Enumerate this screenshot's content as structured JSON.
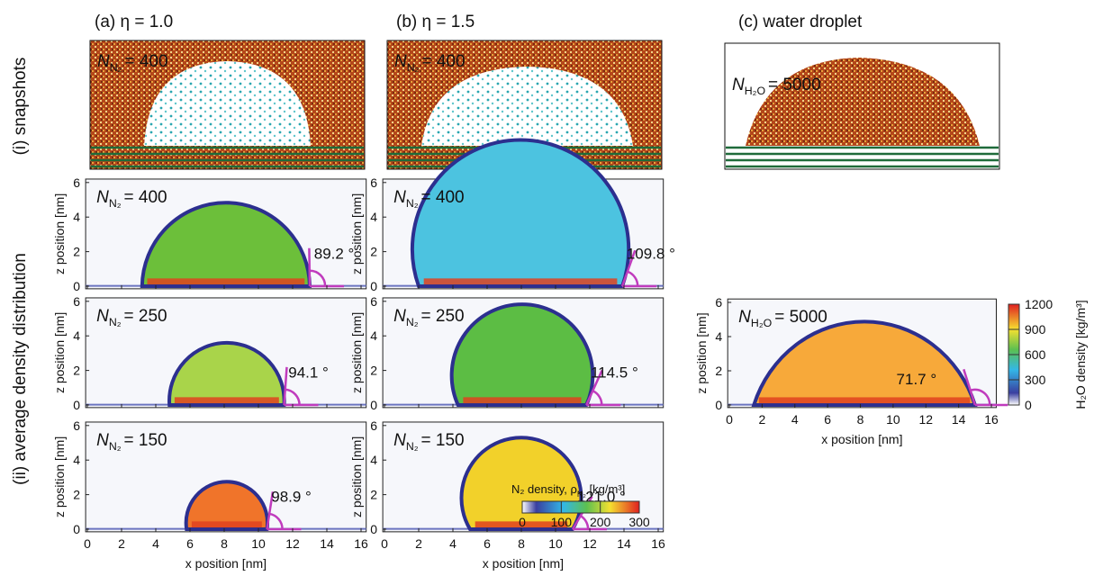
{
  "columns": [
    "(a) η = 1.0",
    "(b) η = 1.5",
    "(c) water droplet"
  ],
  "row_labels": [
    "(i) snapshots",
    "(ii) average density distribution"
  ],
  "snapshots": [
    {
      "species_symbol": "N",
      "species_sub": "N₂",
      "count": "= 400"
    },
    {
      "species_symbol": "N",
      "species_sub": "N₂",
      "count": "= 400"
    },
    {
      "species_symbol": "N",
      "species_sub": "H₂O",
      "count": "= 5000"
    }
  ],
  "axes": {
    "xlim": [
      -0.1,
      16.3
    ],
    "ylim": [
      -0.15,
      6.2
    ],
    "xticks": [
      0,
      2,
      4,
      6,
      8,
      10,
      12,
      14,
      16
    ],
    "yticks": [
      0,
      2,
      4,
      6
    ],
    "xlabel": "x position [nm]",
    "ylabel": "z position [nm]"
  },
  "density_maps": [
    [
      {
        "species_symbol": "N",
        "species_sub": "N₂",
        "count": "= 400",
        "contact_x": [
          3.2,
          13.0
        ],
        "angle": {
          "value": 89.2,
          "label": "89.2 °"
        },
        "color": "#6cbf3a"
      },
      {
        "species_symbol": "N",
        "species_sub": "N₂",
        "count": "= 250",
        "contact_x": [
          4.8,
          11.5
        ],
        "angle": {
          "value": 94.1,
          "label": "94.1 °"
        },
        "color": "#a9d44a"
      },
      {
        "species_symbol": "N",
        "species_sub": "N₂",
        "count": "= 150",
        "contact_x": [
          5.8,
          10.5
        ],
        "angle": {
          "value": 98.9,
          "label": "98.9 °"
        },
        "color": "#f0742a"
      }
    ],
    [
      {
        "species_symbol": "N",
        "species_sub": "N₂",
        "count": "= 400",
        "contact_x": [
          2.0,
          13.9
        ],
        "angle": {
          "value": 109.8,
          "label": "109.8 °"
        },
        "color": "#4cc3e0"
      },
      {
        "species_symbol": "N",
        "species_sub": "N₂",
        "count": "= 250",
        "contact_x": [
          4.3,
          11.8
        ],
        "angle": {
          "value": 114.5,
          "label": "114.5 °"
        },
        "color": "#5cbd44"
      },
      {
        "species_symbol": "N",
        "species_sub": "N₂",
        "count": "= 150",
        "contact_x": [
          5.0,
          11.0
        ],
        "angle": {
          "value": 121.0,
          "label": "121.0 °"
        },
        "color": "#f2d12a"
      }
    ],
    [
      {
        "species_symbol": "N",
        "species_sub": "H₂O",
        "count": "= 5000",
        "contact_x": [
          1.5,
          15.0
        ],
        "angle": {
          "value": 71.7,
          "label": "71.7 °"
        },
        "color": "#f7a93a"
      }
    ]
  ],
  "colorbar_n2": {
    "title": "N₂ density, ρ",
    "title_sub": "N₂",
    "title_unit": " [kg/m³]",
    "lim": [
      0,
      300
    ],
    "ticks": [
      0,
      100,
      200,
      300
    ]
  },
  "colorbar_h2o": {
    "label": "H₂O density [kg/m³]",
    "lim": [
      0,
      1200
    ],
    "ticks": [
      0,
      300,
      600,
      900,
      1200
    ]
  }
}
